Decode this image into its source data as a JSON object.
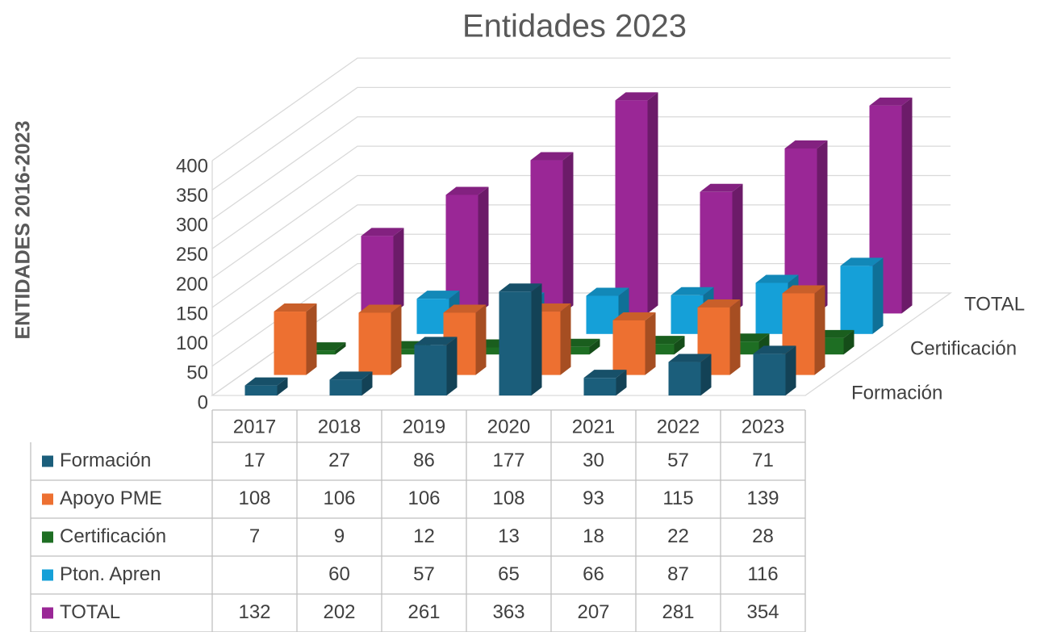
{
  "chart_data": {
    "type": "bar3d",
    "title": "Entidades 2023",
    "y_label": "ENTIDADES 2016-2023",
    "categories": [
      "2017",
      "2018",
      "2019",
      "2020",
      "2021",
      "2022",
      "2023"
    ],
    "series": [
      {
        "name": "Formación",
        "color": "#1b5e7b",
        "values": [
          17,
          27,
          86,
          177,
          30,
          57,
          71
        ]
      },
      {
        "name": "Apoyo PME",
        "color": "#ed7031",
        "values": [
          108,
          106,
          106,
          108,
          93,
          115,
          139
        ]
      },
      {
        "name": "Certificación",
        "color": "#1e6e23",
        "values": [
          7,
          9,
          12,
          13,
          18,
          22,
          28
        ]
      },
      {
        "name": "Pton. Apren",
        "color": "#15a0d8",
        "values": [
          null,
          60,
          57,
          65,
          66,
          87,
          116
        ]
      },
      {
        "name": "TOTAL",
        "color": "#9a2796",
        "values": [
          132,
          202,
          261,
          363,
          207,
          281,
          354
        ]
      }
    ],
    "ylim": [
      0,
      400
    ],
    "yticks": [
      0,
      50,
      100,
      150,
      200,
      250,
      300,
      350,
      400
    ],
    "grid": true,
    "data_table": true
  }
}
